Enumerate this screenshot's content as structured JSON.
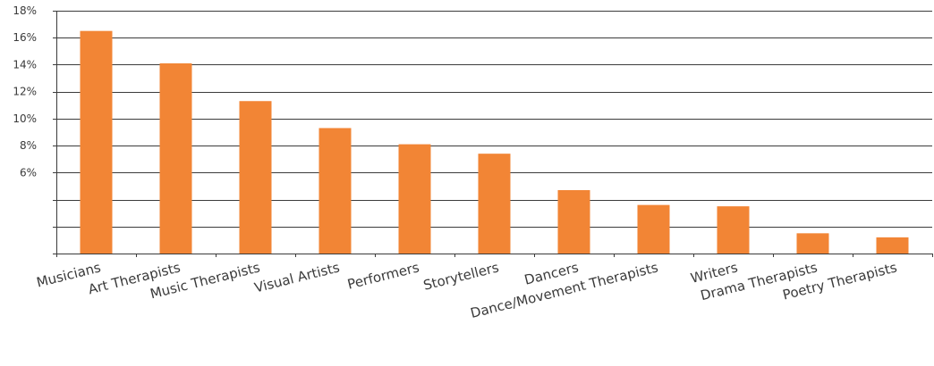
{
  "chart_data": {
    "type": "bar",
    "categories": [
      "Musicians",
      "Art Therapists",
      "Music Therapists",
      "Visual Artists",
      "Performers",
      "Storytellers",
      "Dancers",
      "Dance/Movement Therapists",
      "Writers",
      "Drama Therapists",
      "Poetry Therapists"
    ],
    "values": [
      16.5,
      14.1,
      11.3,
      9.3,
      8.1,
      7.4,
      4.7,
      3.6,
      3.5,
      1.5,
      1.2
    ],
    "ylim": [
      0,
      18
    ],
    "y_tick_labels": [
      "",
      "",
      "",
      "6%",
      "8%",
      "10%",
      "12%",
      "14%",
      "16%",
      "18%"
    ],
    "title": "",
    "xlabel": "",
    "ylabel": "",
    "grid": true,
    "bar_color": "#f28535"
  }
}
